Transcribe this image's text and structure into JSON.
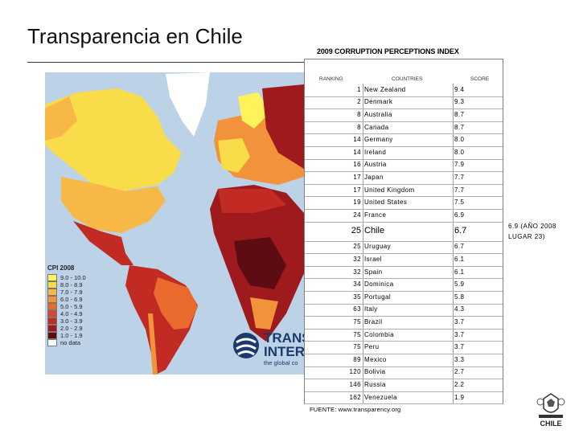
{
  "slide": {
    "title": "Transparencia en Chile",
    "table_title": "2009 CORRUPTION PERCEPTIONS INDEX",
    "chile_note_line1": "6.9 (AÑO 2008",
    "chile_note_line2": "LUGAR 23)",
    "source": "FUENTE: www.transparency.org"
  },
  "table": {
    "headers": {
      "ranking": "RANKING",
      "countries": "COUNTRIES",
      "score": "SCORE"
    },
    "rows": [
      {
        "rank": "1",
        "country": "New Zealand",
        "score": "9.4"
      },
      {
        "rank": "2",
        "country": "Denmark",
        "score": "9.3"
      },
      {
        "rank": "8",
        "country": "Australia",
        "score": "8.7"
      },
      {
        "rank": "8",
        "country": "Canada",
        "score": "8.7"
      },
      {
        "rank": "14",
        "country": "Germany",
        "score": "8.0"
      },
      {
        "rank": "14",
        "country": "Ireland",
        "score": "8.0"
      },
      {
        "rank": "16",
        "country": "Austria",
        "score": "7.9"
      },
      {
        "rank": "17",
        "country": "Japan",
        "score": "7.7"
      },
      {
        "rank": "17",
        "country": "United Kingdom",
        "score": "7.7"
      },
      {
        "rank": "19",
        "country": "United States",
        "score": "7.5"
      },
      {
        "rank": "24",
        "country": "France",
        "score": "6.9"
      },
      {
        "rank": "25",
        "country": "Chile",
        "score": "6.7",
        "highlight": true
      },
      {
        "rank": "25",
        "country": "Uruguay",
        "score": "6.7"
      },
      {
        "rank": "32",
        "country": "Israel",
        "score": "6.1"
      },
      {
        "rank": "32",
        "country": "Spain",
        "score": "6.1"
      },
      {
        "rank": "34",
        "country": "Dominica",
        "score": "5.9"
      },
      {
        "rank": "35",
        "country": "Portugal",
        "score": "5.8"
      },
      {
        "rank": "63",
        "country": "Italy",
        "score": "4.3"
      },
      {
        "rank": "75",
        "country": "Brazil",
        "score": "3.7"
      },
      {
        "rank": "75",
        "country": "Colombia",
        "score": "3.7"
      },
      {
        "rank": "75",
        "country": "Peru",
        "score": "3.7"
      },
      {
        "rank": "89",
        "country": "Mexico",
        "score": "3.3"
      },
      {
        "rank": "120",
        "country": "Bolivia",
        "score": "2.7"
      },
      {
        "rank": "146",
        "country": "Russia",
        "score": "2.2"
      },
      {
        "rank": "162",
        "country": "Venezuela",
        "score": "1.9"
      }
    ]
  },
  "map": {
    "legend_title": "CPI 2008",
    "legend": [
      {
        "label": "9.0 - 10.0",
        "color": "#fff25a"
      },
      {
        "label": "8.0 - 8.9",
        "color": "#f9dc4a"
      },
      {
        "label": "7.0 - 7.9",
        "color": "#f7b847"
      },
      {
        "label": "6.0 - 6.9",
        "color": "#f2923a"
      },
      {
        "label": "5.0 - 5.9",
        "color": "#ea6a2e"
      },
      {
        "label": "4.0 - 4.9",
        "color": "#d8452a"
      },
      {
        "label": "3.0 - 3.9",
        "color": "#c22a24"
      },
      {
        "label": "2.0 - 2.9",
        "color": "#9e1a1d"
      },
      {
        "label": "1.0 - 1.9",
        "color": "#5c0c12"
      },
      {
        "label": "no data",
        "color": "#ffffff"
      }
    ],
    "logo_text_line1": "TRANS",
    "logo_text_line2": "INTER",
    "logo_tagline": "the global co"
  },
  "logo": {
    "text": "CHILE",
    "icon": "chile-coat-of-arms-icon"
  }
}
